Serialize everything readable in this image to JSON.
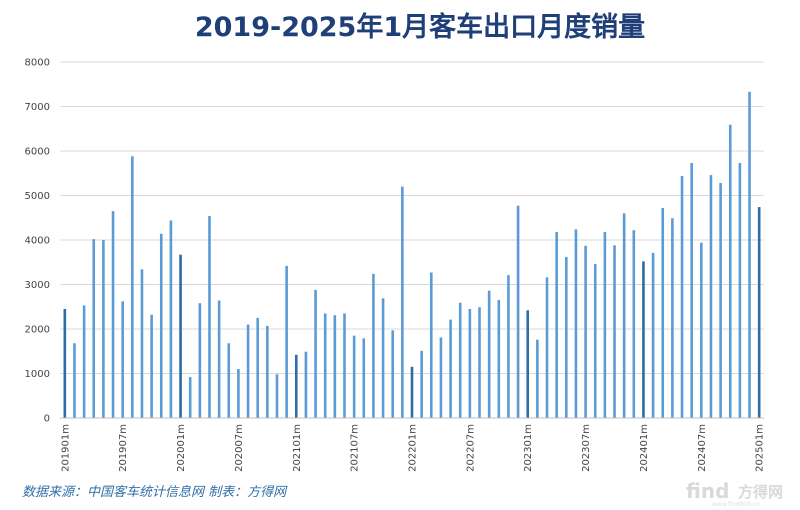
{
  "chart_data": {
    "type": "bar",
    "title": "2019-2025年1月客车出口月度销量",
    "xlabel": "",
    "ylabel": "",
    "ylim": [
      0,
      8000
    ],
    "yticks": [
      0,
      1000,
      2000,
      3000,
      4000,
      5000,
      6000,
      7000,
      8000
    ],
    "grid": true,
    "legend": "none",
    "categories": [
      "201901m",
      "201902m",
      "201903m",
      "201904m",
      "201905m",
      "201906m",
      "201907m",
      "201908m",
      "201909m",
      "201910m",
      "201911m",
      "201912m",
      "202001m",
      "202002m",
      "202003m",
      "202004m",
      "202005m",
      "202006m",
      "202007m",
      "202008m",
      "202009m",
      "202010m",
      "202011m",
      "202012m",
      "202101m",
      "202102m",
      "202103m",
      "202104m",
      "202105m",
      "202106m",
      "202107m",
      "202108m",
      "202109m",
      "202110m",
      "202111m",
      "202112m",
      "202201m",
      "202202m",
      "202203m",
      "202204m",
      "202205m",
      "202206m",
      "202207m",
      "202208m",
      "202209m",
      "202210m",
      "202211m",
      "202212m",
      "202301m",
      "202302m",
      "202303m",
      "202304m",
      "202305m",
      "202306m",
      "202307m",
      "202308m",
      "202309m",
      "202310m",
      "202311m",
      "202312m",
      "202401m",
      "202402m",
      "202403m",
      "202404m",
      "202405m",
      "202406m",
      "202407m",
      "202408m",
      "202409m",
      "202410m",
      "202411m",
      "202412m",
      "202501m"
    ],
    "values": [
      2450,
      1680,
      2530,
      4020,
      4000,
      4650,
      2620,
      5880,
      3340,
      2320,
      4140,
      4440,
      3670,
      920,
      2580,
      4540,
      2640,
      1680,
      1100,
      2100,
      2250,
      2070,
      980,
      3420,
      1420,
      1490,
      2880,
      2350,
      2310,
      2350,
      1850,
      1790,
      3240,
      2690,
      1970,
      5200,
      1150,
      1510,
      3270,
      1810,
      2210,
      2590,
      2450,
      2490,
      2860,
      2650,
      3210,
      4770,
      2420,
      1760,
      3160,
      4180,
      3620,
      4240,
      3870,
      3460,
      4180,
      3880,
      4600,
      4220,
      3520,
      3710,
      4720,
      4490,
      5440,
      5730,
      3940,
      5460,
      5280,
      6590,
      5730,
      7330,
      4740
    ],
    "x_tick_labels": [
      "201901m",
      "201907m",
      "202001m",
      "202007m",
      "202101m",
      "202107m",
      "202201m",
      "202207m",
      "202301m",
      "202307m",
      "202401m",
      "202407m",
      "202501m"
    ],
    "colors": {
      "bar": "#5b9bd5",
      "bar_january": "#2e6ca6"
    }
  },
  "footer": {
    "source": "数据来源：中国客车统计信息网  制表：方得网"
  },
  "watermark": {
    "latin": "find",
    "cn": "方得网",
    "url": "www.find800.cn"
  }
}
